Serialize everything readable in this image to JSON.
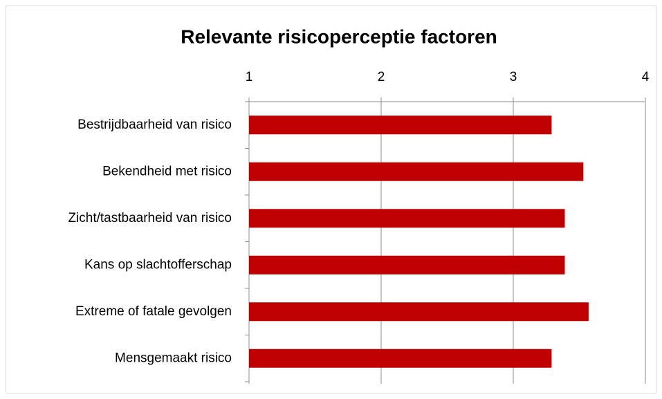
{
  "chart_data": {
    "type": "barh",
    "title": "Relevante risicoperceptie factoren",
    "categories": [
      "Bestrijdbaarheid van risico",
      "Bekendheid met risico",
      "Zicht/tastbaarheid van risico",
      "Kans op slachtofferschap",
      "Extreme of fatale gevolgen",
      "Mensgemaakt risico"
    ],
    "values": [
      3.29,
      3.53,
      3.39,
      3.39,
      3.57,
      3.29
    ],
    "color": "#c00000",
    "xlim": [
      1,
      4
    ],
    "xticks": [
      1,
      2,
      3,
      4
    ],
    "grid": true
  }
}
